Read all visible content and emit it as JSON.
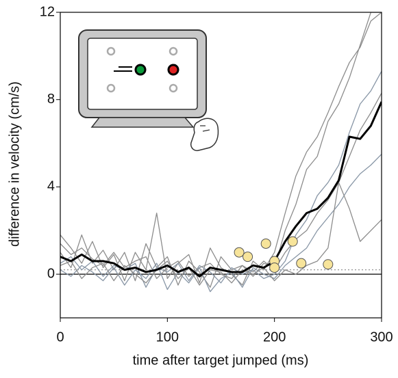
{
  "chart_data": {
    "type": "line",
    "x_label": "time after target jumped (ms)",
    "y_label": "difference in velocity (cm/s)",
    "x": [
      0,
      10,
      20,
      30,
      40,
      50,
      60,
      70,
      80,
      90,
      100,
      110,
      120,
      130,
      140,
      150,
      160,
      170,
      180,
      190,
      200,
      210,
      220,
      230,
      240,
      250,
      260,
      270,
      280,
      290,
      300
    ],
    "series": [
      {
        "color": "#8c8c8c",
        "values": [
          1.8,
          1.2,
          0.5,
          1.5,
          0.3,
          0.9,
          -0.3,
          1.0,
          0.2,
          2.8,
          -0.2,
          0.5,
          0.9,
          -0.4,
          1.2,
          0.3,
          0.0,
          -0.5,
          0.6,
          0.2,
          1.0,
          2.8,
          4.5,
          5.6,
          6.3,
          7.4,
          8.6,
          9.7,
          10.4,
          11.6,
          12
        ]
      },
      {
        "color": "#8c8c8c",
        "values": [
          1.0,
          0.3,
          1.8,
          0.5,
          1.1,
          0.2,
          1.0,
          -0.3,
          1.4,
          0.3,
          0.8,
          -0.5,
          0.6,
          0.1,
          -0.6,
          0.8,
          0.2,
          0.4,
          -0.1,
          0.5,
          0.3,
          2.0,
          3.2,
          4.8,
          5.4,
          7.0,
          7.8,
          9.0,
          10.5,
          12,
          12
        ]
      },
      {
        "color": "#8896a6",
        "values": [
          0.5,
          0.8,
          0.2,
          0.6,
          -0.1,
          0.4,
          0.2,
          0.5,
          -0.6,
          0.3,
          0.1,
          0.5,
          -0.3,
          0.4,
          0.1,
          -0.4,
          0.3,
          0.0,
          0.2,
          -0.2,
          0.0,
          0.6,
          1.8,
          2.5,
          3.6,
          4.2,
          5.0,
          6.5,
          7.8,
          8.4,
          9.3
        ]
      },
      {
        "color": "#8c8c8c",
        "values": [
          1.4,
          0.9,
          1.2,
          0.7,
          0.4,
          1.0,
          0.3,
          0.6,
          0.8,
          -0.2,
          0.3,
          0.6,
          -0.1,
          0.3,
          0.5,
          0.0,
          -0.2,
          0.4,
          0.1,
          0.6,
          0.2,
          1.0,
          1.6,
          2.0,
          2.8,
          3.4,
          4.2,
          5.4,
          6.6,
          7.4,
          8.3
        ]
      },
      {
        "color": "#8896a6",
        "values": [
          0.2,
          -0.1,
          0.4,
          0.1,
          -0.3,
          0.3,
          -0.5,
          0.2,
          -0.2,
          0.5,
          -0.7,
          0.1,
          -0.4,
          0.3,
          -0.8,
          -0.2,
          0.1,
          -0.6,
          0.3,
          0.0,
          -0.2,
          0.4,
          0.8,
          1.2,
          2.0,
          2.6,
          3.2,
          4.0,
          4.6,
          5.0,
          5.5
        ]
      },
      {
        "color": "#8c8c8c",
        "values": [
          0.4,
          0.6,
          -0.2,
          0.3,
          0.5,
          -0.3,
          0.4,
          0.0,
          -0.4,
          0.2,
          0.6,
          -0.2,
          0.3,
          -0.5,
          0.2,
          0.1,
          -0.4,
          0.2,
          0.0,
          0.3,
          -0.3,
          0.2,
          0.0,
          0.4,
          0.6,
          1.2,
          4.2,
          3.0,
          1.5,
          2.0,
          2.5
        ]
      },
      {
        "color": "#000000",
        "width": 3,
        "values": [
          0.8,
          0.6,
          0.9,
          0.6,
          0.6,
          0.5,
          0.2,
          0.3,
          0.1,
          0.2,
          0.4,
          0.1,
          0.3,
          -0.1,
          0.3,
          0.2,
          0.1,
          0.1,
          0.4,
          0.3,
          0.6,
          1.5,
          2.2,
          2.8,
          3.0,
          3.5,
          4.3,
          6.3,
          6.2,
          6.8,
          7.9
        ]
      }
    ],
    "points": {
      "color": "#f7e49a",
      "x": [
        167,
        175,
        192,
        200,
        200,
        217,
        225,
        250
      ],
      "y": [
        1.0,
        0.8,
        1.4,
        0.6,
        0.3,
        1.5,
        0.5,
        0.45
      ]
    },
    "threshold": 0.2,
    "xlim": [
      0,
      300
    ],
    "ylim": [
      -2,
      12
    ],
    "xticks": [
      0,
      100,
      200,
      300
    ],
    "yticks": [
      0,
      4,
      8,
      12
    ]
  }
}
